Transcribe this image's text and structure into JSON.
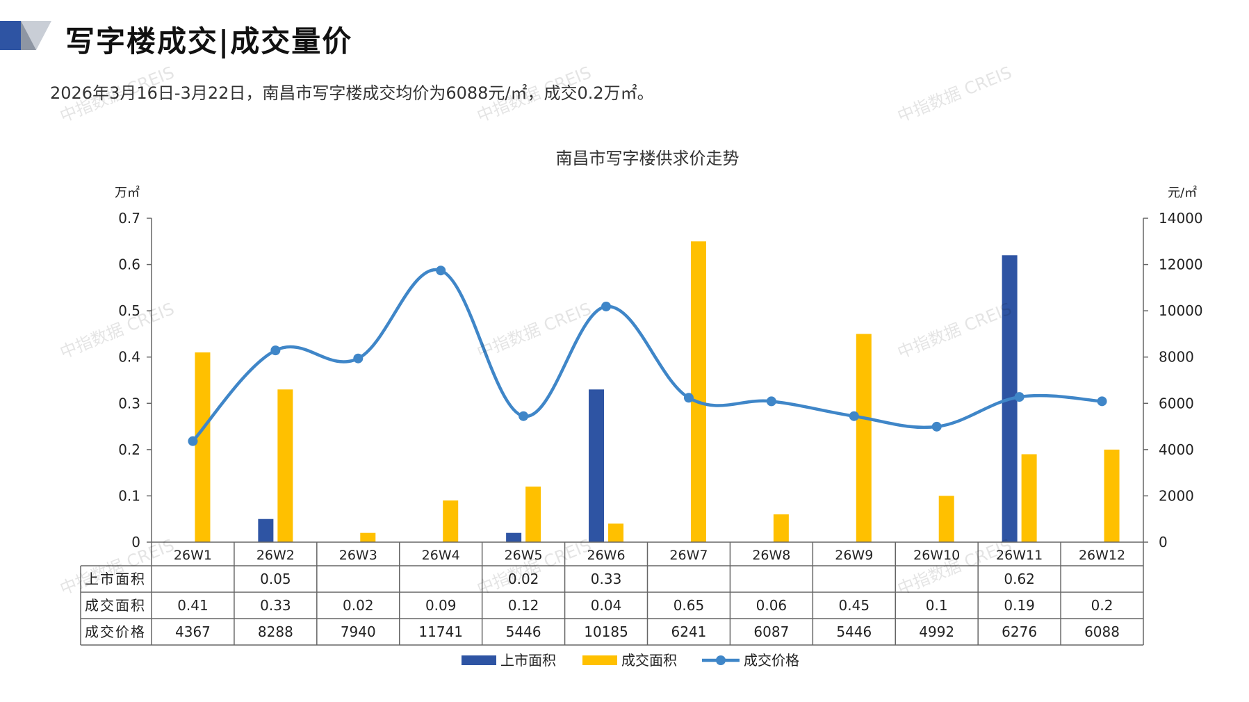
{
  "header": {
    "title": "写字楼成交|成交量价",
    "subtitle": "2026年3月16日-3月22日，南昌市写字楼成交均价为6088元/㎡，成交0.2万㎡。"
  },
  "watermark": "中指数据 CREIS",
  "colors": {
    "listed": "#2E54A3",
    "sold": "#FFC000",
    "price": "#3F86C8",
    "grid": "#666666"
  },
  "chart_data": {
    "type": "bar",
    "title": "南昌市写字楼供求价走势",
    "y_left_label": "万㎡",
    "y_right_label": "元/㎡",
    "y_left_ticks": [
      "0",
      "0.1",
      "0.2",
      "0.3",
      "0.4",
      "0.5",
      "0.6",
      "0.7"
    ],
    "y_right_ticks": [
      "0",
      "2000",
      "4000",
      "6000",
      "8000",
      "10000",
      "12000",
      "14000"
    ],
    "ylim_left": [
      0,
      0.7
    ],
    "ylim_right": [
      0,
      14000
    ],
    "categories": [
      "26W1",
      "26W2",
      "26W3",
      "26W4",
      "26W5",
      "26W6",
      "26W7",
      "26W8",
      "26W9",
      "26W10",
      "26W11",
      "26W12"
    ],
    "series": [
      {
        "name": "上市面积",
        "type": "bar",
        "axis": "left",
        "values": [
          null,
          0.05,
          null,
          null,
          0.02,
          0.33,
          null,
          null,
          null,
          null,
          0.62,
          null
        ],
        "labels": [
          "",
          "0.05",
          "",
          "",
          "0.02",
          "0.33",
          "",
          "",
          "",
          "",
          "0.62",
          ""
        ]
      },
      {
        "name": "成交面积",
        "type": "bar",
        "axis": "left",
        "values": [
          0.41,
          0.33,
          0.02,
          0.09,
          0.12,
          0.04,
          0.65,
          0.06,
          0.45,
          0.1,
          0.19,
          0.2
        ],
        "labels": [
          "0.41",
          "0.33",
          "0.02",
          "0.09",
          "0.12",
          "0.04",
          "0.65",
          "0.06",
          "0.45",
          "0.1",
          "0.19",
          "0.2"
        ]
      },
      {
        "name": "成交价格",
        "type": "line",
        "axis": "right",
        "values": [
          4367,
          8288,
          7940,
          11741,
          5446,
          10185,
          6241,
          6087,
          5446,
          4992,
          6276,
          6088
        ],
        "labels": [
          "4367",
          "8288",
          "7940",
          "11741",
          "5446",
          "10185",
          "6241",
          "6087",
          "5446",
          "4992",
          "6276",
          "6088"
        ]
      }
    ],
    "legend_position": "bottom"
  }
}
